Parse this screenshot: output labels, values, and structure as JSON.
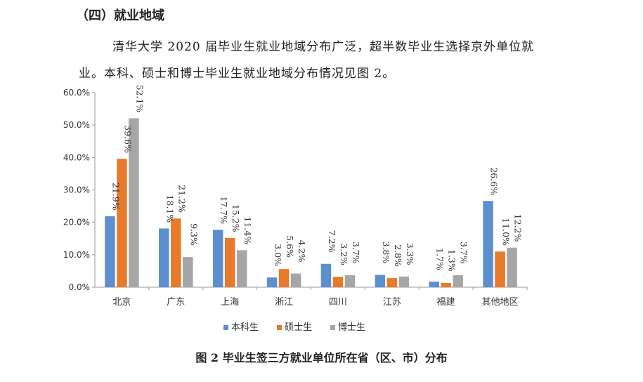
{
  "heading": "（四）就业地域",
  "paragraph": {
    "line1": "清华大学 2020 届毕业生就业地域分布广泛，超半数毕业生选择京外单位就",
    "line2": "业。本科、硕士和博士毕业生就业地域分布情况见图 2。"
  },
  "chart_data": {
    "type": "bar",
    "title": "图 2 毕业生签三方就业单位所在省（区、市）分布",
    "categories": [
      "北京",
      "广东",
      "上海",
      "浙江",
      "四川",
      "江苏",
      "福建",
      "其他地区"
    ],
    "series": [
      {
        "name": "本科生",
        "color": "#5b8fd0",
        "values": [
          21.9,
          18.1,
          17.7,
          3.0,
          7.2,
          3.8,
          1.7,
          26.6
        ],
        "labels": [
          "21.9%",
          "18.1%",
          "17.7%",
          "3.0%",
          "7.2%",
          "3.8%",
          "1.7%",
          "26.6%"
        ]
      },
      {
        "name": "硕士生",
        "color": "#e87a2a",
        "values": [
          39.6,
          21.2,
          15.2,
          5.6,
          3.2,
          2.8,
          1.3,
          11.0
        ],
        "labels": [
          "39.6%",
          "21.2%",
          "15.2%",
          "5.6%",
          "3.2%",
          "2.8%",
          "1.3%",
          "11.0%"
        ]
      },
      {
        "name": "博士生",
        "color": "#a6a6a6",
        "values": [
          52.1,
          9.3,
          11.4,
          4.2,
          3.7,
          3.3,
          3.7,
          12.2
        ],
        "labels": [
          "52.1%",
          "9.3%",
          "11.4%",
          "4.2%",
          "3.7%",
          "3.3%",
          "3.7%",
          "12.2%"
        ]
      }
    ],
    "y_ticks": [
      "0.0%",
      "10.0%",
      "20.0%",
      "30.0%",
      "40.0%",
      "50.0%",
      "60.0%"
    ],
    "ylim": [
      0,
      60
    ],
    "legend_position": "bottom",
    "grid": false
  }
}
